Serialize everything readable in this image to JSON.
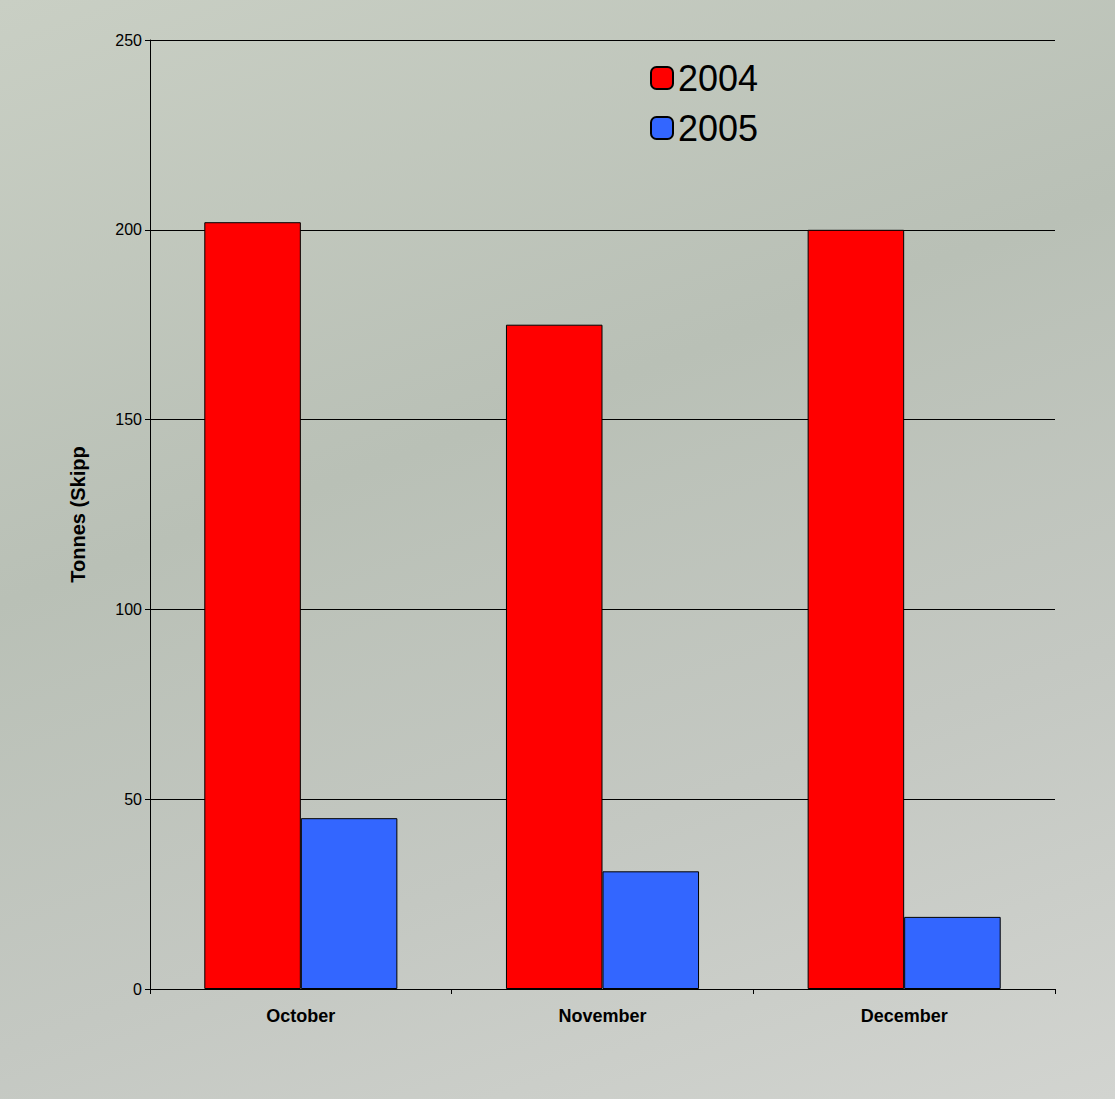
{
  "chart_data": {
    "type": "bar",
    "categories": [
      "October",
      "November",
      "December"
    ],
    "series": [
      {
        "name": "2004",
        "color": "#ff0000",
        "values": [
          202,
          175,
          200
        ]
      },
      {
        "name": "2005",
        "color": "#3366ff",
        "values": [
          45,
          31,
          19
        ]
      }
    ],
    "y_label": "Tonnes (Skipp",
    "ylim": [
      0,
      250
    ],
    "yticks": [
      0,
      50,
      100,
      150,
      200,
      250
    ],
    "grid": true,
    "legend": "top-right"
  }
}
